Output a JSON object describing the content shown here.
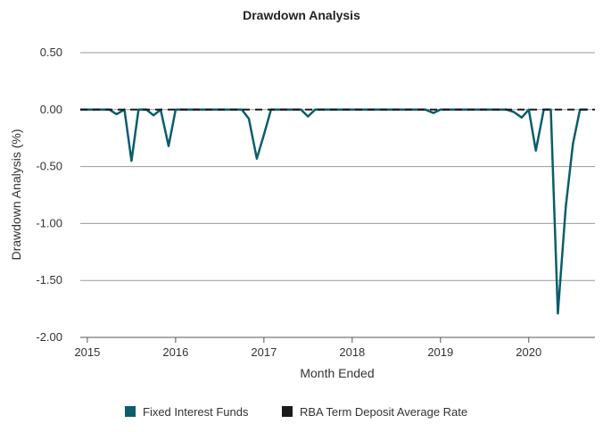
{
  "chart_data": {
    "type": "line",
    "title": "Drawdown Analysis",
    "xlabel": "Month Ended",
    "ylabel": "Drawdown Analysis (%)",
    "ylim": [
      -2.0,
      0.5
    ],
    "yticks": [
      0.5,
      0.0,
      -0.5,
      -1.0,
      -1.5,
      -2.0
    ],
    "ytick_labels": [
      "0.50",
      "0.00",
      "-0.50",
      "-1.00",
      "-1.50",
      "-2.00"
    ],
    "xlim": [
      2014.92,
      2020.75
    ],
    "xticks": [
      2015,
      2016,
      2017,
      2018,
      2019,
      2020
    ],
    "xtick_labels": [
      "2015",
      "2016",
      "2017",
      "2018",
      "2019",
      "2020"
    ],
    "grid": true,
    "legend": "bottom",
    "series": [
      {
        "name": "Fixed Interest Funds",
        "color": "#0b5d6b",
        "style": "solid",
        "x": [
          2014.92,
          2015.0,
          2015.08,
          2015.17,
          2015.25,
          2015.33,
          2015.42,
          2015.5,
          2015.58,
          2015.67,
          2015.75,
          2015.83,
          2015.92,
          2016.0,
          2016.08,
          2016.17,
          2016.25,
          2016.33,
          2016.42,
          2016.5,
          2016.58,
          2016.67,
          2016.75,
          2016.83,
          2016.92,
          2017.0,
          2017.08,
          2017.17,
          2017.25,
          2017.33,
          2017.42,
          2017.5,
          2017.58,
          2017.67,
          2017.75,
          2017.83,
          2017.92,
          2018.0,
          2018.08,
          2018.17,
          2018.25,
          2018.33,
          2018.42,
          2018.5,
          2018.58,
          2018.67,
          2018.75,
          2018.83,
          2018.92,
          2019.0,
          2019.08,
          2019.17,
          2019.25,
          2019.33,
          2019.42,
          2019.5,
          2019.58,
          2019.67,
          2019.75,
          2019.83,
          2019.92,
          2020.0,
          2020.08,
          2020.17,
          2020.25,
          2020.33,
          2020.42,
          2020.5,
          2020.58,
          2020.67
        ],
        "values": [
          0.0,
          0.0,
          0.0,
          0.0,
          0.0,
          -0.04,
          0.0,
          -0.45,
          0.0,
          0.0,
          -0.05,
          0.0,
          -0.32,
          0.0,
          0.0,
          0.0,
          0.0,
          0.0,
          0.0,
          0.0,
          0.0,
          0.0,
          0.0,
          -0.08,
          -0.43,
          -0.22,
          0.0,
          0.0,
          0.0,
          0.0,
          0.0,
          -0.06,
          0.0,
          0.0,
          0.0,
          0.0,
          0.0,
          0.0,
          0.0,
          0.0,
          0.0,
          0.0,
          0.0,
          0.0,
          0.0,
          0.0,
          0.0,
          0.0,
          -0.03,
          0.0,
          0.0,
          0.0,
          0.0,
          0.0,
          0.0,
          0.0,
          0.0,
          0.0,
          0.0,
          -0.02,
          -0.07,
          0.0,
          -0.36,
          0.0,
          0.0,
          -1.79,
          -0.85,
          -0.3,
          0.0,
          0.0
        ]
      },
      {
        "name": "RBA Term Deposit Average Rate",
        "color": "#1a1a1a",
        "style": "dashed",
        "x": [
          2014.92,
          2020.75
        ],
        "values": [
          0.0,
          0.0
        ]
      }
    ]
  }
}
